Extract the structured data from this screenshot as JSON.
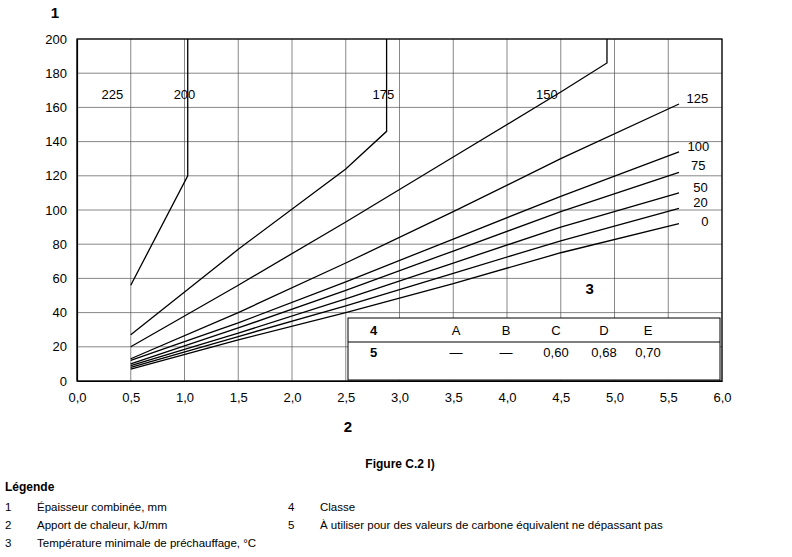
{
  "chart_data": {
    "type": "line",
    "title": "Figure C.2 l)",
    "y_label": "1",
    "x_label": "2",
    "xlim": [
      0,
      6
    ],
    "ylim": [
      0,
      200
    ],
    "xticks": [
      {
        "value": 0,
        "label": "0,0"
      },
      {
        "value": 0.5,
        "label": "0,5"
      },
      {
        "value": 1,
        "label": "1,0"
      },
      {
        "value": 1.5,
        "label": "1,5"
      },
      {
        "value": 2,
        "label": "2,0"
      },
      {
        "value": 2.5,
        "label": "2,5"
      },
      {
        "value": 3,
        "label": "3,0"
      },
      {
        "value": 3.5,
        "label": "3,5"
      },
      {
        "value": 4,
        "label": "4,0"
      },
      {
        "value": 4.5,
        "label": "4,5"
      },
      {
        "value": 5,
        "label": "5,0"
      },
      {
        "value": 5.5,
        "label": "5,5"
      },
      {
        "value": 6,
        "label": "6,0"
      }
    ],
    "yticks": [
      0,
      20,
      40,
      60,
      80,
      100,
      120,
      140,
      160,
      180,
      200
    ],
    "grid": true,
    "color": "#000000",
    "series": [
      {
        "x": [
          0.5,
          1.03,
          1.03
        ],
        "values": [
          56,
          120,
          200
        ]
      },
      {
        "x": [
          0.5,
          1.5,
          2.5,
          2.88,
          2.88
        ],
        "values": [
          27,
          77,
          124,
          146,
          200
        ]
      },
      {
        "x": [
          0.5,
          1.5,
          2.5,
          3.5,
          4.5,
          4.93,
          4.93
        ],
        "values": [
          20,
          56,
          93,
          131,
          169,
          186,
          200
        ]
      },
      {
        "x": [
          0.5,
          1.5,
          2.5,
          3.5,
          4.5,
          5.6
        ],
        "values": [
          13,
          40,
          69,
          99,
          130,
          162
        ]
      },
      {
        "x": [
          0.5,
          1.5,
          2.5,
          3.5,
          4.5,
          5.6
        ],
        "values": [
          12,
          34,
          58,
          83,
          108,
          134
        ]
      },
      {
        "x": [
          0.5,
          1.5,
          2.5,
          3.5,
          4.5,
          5.6
        ],
        "values": [
          10,
          31,
          53,
          76,
          99,
          122
        ]
      },
      {
        "x": [
          0.5,
          1.5,
          2.5,
          3.5,
          4.5,
          5.6
        ],
        "values": [
          9,
          28,
          48,
          69,
          90,
          110
        ]
      },
      {
        "x": [
          0.5,
          1.5,
          2.5,
          3.5,
          4.5,
          5.6
        ],
        "values": [
          8,
          26,
          44,
          63,
          82,
          101
        ]
      },
      {
        "x": [
          0.5,
          1.5,
          2.5,
          3.5,
          4.5,
          5.6
        ],
        "values": [
          7,
          24,
          40,
          57,
          75,
          92
        ]
      }
    ],
    "annotations": [
      {
        "text": "225",
        "x": 0.33,
        "y": 167
      },
      {
        "text": "200",
        "x": 1.0,
        "y": 167
      },
      {
        "text": "175",
        "x": 2.85,
        "y": 167
      },
      {
        "text": "150",
        "x": 4.37,
        "y": 167
      },
      {
        "text": "125",
        "x": 5.77,
        "y": 165
      },
      {
        "text": "100",
        "x": 5.78,
        "y": 137
      },
      {
        "text": "75",
        "x": 5.78,
        "y": 126
      },
      {
        "text": "50",
        "x": 5.8,
        "y": 113
      },
      {
        "text": "20",
        "x": 5.8,
        "y": 104
      },
      {
        "text": "0",
        "x": 5.84,
        "y": 93
      },
      {
        "text": "3",
        "x": 4.77,
        "y": 53
      }
    ],
    "table": {
      "header": [
        "4",
        "A",
        "B",
        "C",
        "D",
        "E"
      ],
      "rows": [
        [
          "5",
          "—",
          "—",
          "0,60",
          "0,68",
          "0,70"
        ]
      ]
    }
  },
  "legend_block": {
    "title": "Légende",
    "items": [
      {
        "key": "1",
        "text": "Épaisseur combinée, mm"
      },
      {
        "key": "2",
        "text": "Apport de chaleur, kJ/mm"
      },
      {
        "key": "3",
        "text": "Température minimale de préchauffage, °C"
      },
      {
        "key": "4",
        "text": "Classe"
      },
      {
        "key": "5",
        "text": "À utiliser pour des valeurs de carbone équivalent ne dépassant pas"
      }
    ]
  }
}
